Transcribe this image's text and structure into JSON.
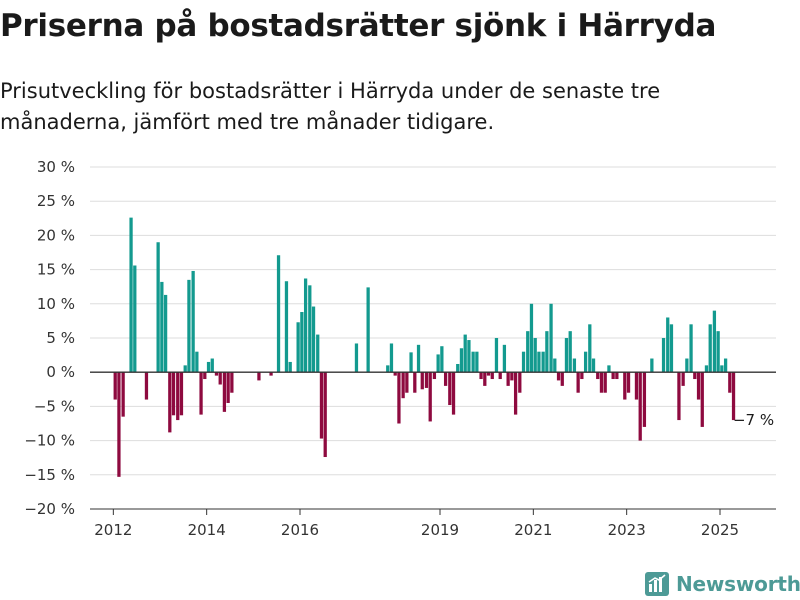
{
  "title": "Priserna på bostadsrätter sjönk i Härryda",
  "subtitle": "Prisutveckling för bostadsrätter i Härryda under de senaste tre månaderna, jämfört med tre månader tidigare.",
  "brand": {
    "name": "Newsworthy",
    "icon": "bar-chart-logo-icon",
    "color": "#4d9a96"
  },
  "colors": {
    "positive": "#139a8f",
    "negative": "#8e0a3f",
    "grid": "#dddddd",
    "axis": "#333333"
  },
  "chart_data": {
    "type": "bar",
    "xlabel": "",
    "ylabel": "",
    "ylim": [
      -20,
      30
    ],
    "y_ticks": [
      -20,
      -15,
      -10,
      -5,
      0,
      5,
      10,
      15,
      20,
      25,
      30
    ],
    "y_tick_labels": [
      "−20 %",
      "−15 %",
      "−10 %",
      "−5 %",
      "0 %",
      "5 %",
      "10 %",
      "15 %",
      "20 %",
      "25 %",
      "30 %"
    ],
    "x_range": [
      2011.5,
      2026.2
    ],
    "x_ticks": [
      2012,
      2014,
      2016,
      2019,
      2021,
      2023,
      2025
    ],
    "x_tick_labels": [
      "2012",
      "2014",
      "2016",
      "2019",
      "2021",
      "2023",
      "2025"
    ],
    "grid": true,
    "bar_width_years": 0.07,
    "points": [
      [
        2012.04,
        -4
      ],
      [
        2012.12,
        -15.3
      ],
      [
        2012.21,
        -6.5
      ],
      [
        2012.38,
        22.6
      ],
      [
        2012.46,
        15.6
      ],
      [
        2012.71,
        -4
      ],
      [
        2012.96,
        19
      ],
      [
        2013.04,
        13.2
      ],
      [
        2013.12,
        11.3
      ],
      [
        2013.21,
        -8.8
      ],
      [
        2013.29,
        -6.3
      ],
      [
        2013.38,
        -7
      ],
      [
        2013.46,
        -6.3
      ],
      [
        2013.54,
        1
      ],
      [
        2013.62,
        13.5
      ],
      [
        2013.71,
        14.8
      ],
      [
        2013.79,
        3
      ],
      [
        2013.88,
        -6.2
      ],
      [
        2013.96,
        -1
      ],
      [
        2014.04,
        1.5
      ],
      [
        2014.12,
        2
      ],
      [
        2014.21,
        -0.5
      ],
      [
        2014.29,
        -1.8
      ],
      [
        2014.38,
        -5.8
      ],
      [
        2014.46,
        -4.5
      ],
      [
        2014.54,
        -3
      ],
      [
        2015.12,
        -1.2
      ],
      [
        2015.38,
        -0.5
      ],
      [
        2015.54,
        17.1
      ],
      [
        2015.71,
        13.3
      ],
      [
        2015.79,
        1.5
      ],
      [
        2015.96,
        7.3
      ],
      [
        2016.04,
        8.8
      ],
      [
        2016.12,
        13.7
      ],
      [
        2016.21,
        12.7
      ],
      [
        2016.29,
        9.6
      ],
      [
        2016.38,
        5.5
      ],
      [
        2016.46,
        -9.7
      ],
      [
        2016.54,
        -12.4
      ],
      [
        2017.21,
        4.2
      ],
      [
        2017.46,
        12.4
      ],
      [
        2017.88,
        1
      ],
      [
        2017.96,
        4.2
      ],
      [
        2018.04,
        -0.5
      ],
      [
        2018.12,
        -7.5
      ],
      [
        2018.21,
        -3.8
      ],
      [
        2018.29,
        -3
      ],
      [
        2018.38,
        2.9
      ],
      [
        2018.46,
        -3
      ],
      [
        2018.54,
        4
      ],
      [
        2018.62,
        -2.5
      ],
      [
        2018.71,
        -2.3
      ],
      [
        2018.79,
        -7.2
      ],
      [
        2018.88,
        -1
      ],
      [
        2018.96,
        2.6
      ],
      [
        2019.04,
        3.8
      ],
      [
        2019.12,
        -2
      ],
      [
        2019.21,
        -4.8
      ],
      [
        2019.29,
        -6.2
      ],
      [
        2019.38,
        1.2
      ],
      [
        2019.46,
        3.5
      ],
      [
        2019.54,
        5.5
      ],
      [
        2019.62,
        4.7
      ],
      [
        2019.71,
        3
      ],
      [
        2019.79,
        3
      ],
      [
        2019.88,
        -1
      ],
      [
        2019.96,
        -2
      ],
      [
        2020.04,
        -0.5
      ],
      [
        2020.12,
        -1
      ],
      [
        2020.21,
        5
      ],
      [
        2020.29,
        -1
      ],
      [
        2020.38,
        4
      ],
      [
        2020.46,
        -2
      ],
      [
        2020.54,
        -1.2
      ],
      [
        2020.62,
        -6.2
      ],
      [
        2020.71,
        -3
      ],
      [
        2020.79,
        3
      ],
      [
        2020.88,
        6
      ],
      [
        2020.96,
        10
      ],
      [
        2021.04,
        5
      ],
      [
        2021.12,
        3
      ],
      [
        2021.21,
        3
      ],
      [
        2021.29,
        6
      ],
      [
        2021.38,
        10
      ],
      [
        2021.46,
        2
      ],
      [
        2021.54,
        -1.2
      ],
      [
        2021.62,
        -2
      ],
      [
        2021.71,
        5
      ],
      [
        2021.79,
        6
      ],
      [
        2021.88,
        2
      ],
      [
        2021.96,
        -3
      ],
      [
        2022.04,
        -1
      ],
      [
        2022.12,
        3
      ],
      [
        2022.21,
        7
      ],
      [
        2022.29,
        2
      ],
      [
        2022.38,
        -1
      ],
      [
        2022.46,
        -3
      ],
      [
        2022.54,
        -3
      ],
      [
        2022.62,
        1
      ],
      [
        2022.71,
        -1
      ],
      [
        2022.79,
        -1
      ],
      [
        2022.96,
        -4
      ],
      [
        2023.04,
        -3
      ],
      [
        2023.21,
        -4
      ],
      [
        2023.29,
        -10
      ],
      [
        2023.38,
        -8
      ],
      [
        2023.54,
        2
      ],
      [
        2023.79,
        5
      ],
      [
        2023.88,
        8
      ],
      [
        2023.96,
        7
      ],
      [
        2024.12,
        -7
      ],
      [
        2024.21,
        -2
      ],
      [
        2024.29,
        2
      ],
      [
        2024.38,
        7
      ],
      [
        2024.46,
        -1
      ],
      [
        2024.54,
        -4
      ],
      [
        2024.62,
        -8
      ],
      [
        2024.71,
        1
      ],
      [
        2024.79,
        7
      ],
      [
        2024.88,
        9
      ],
      [
        2024.96,
        6
      ],
      [
        2025.04,
        1
      ],
      [
        2025.12,
        2
      ],
      [
        2025.21,
        -3
      ],
      [
        2025.29,
        -7
      ]
    ],
    "annotations": [
      {
        "x": 2025.29,
        "y": -7,
        "text": "−7 %"
      }
    ]
  }
}
